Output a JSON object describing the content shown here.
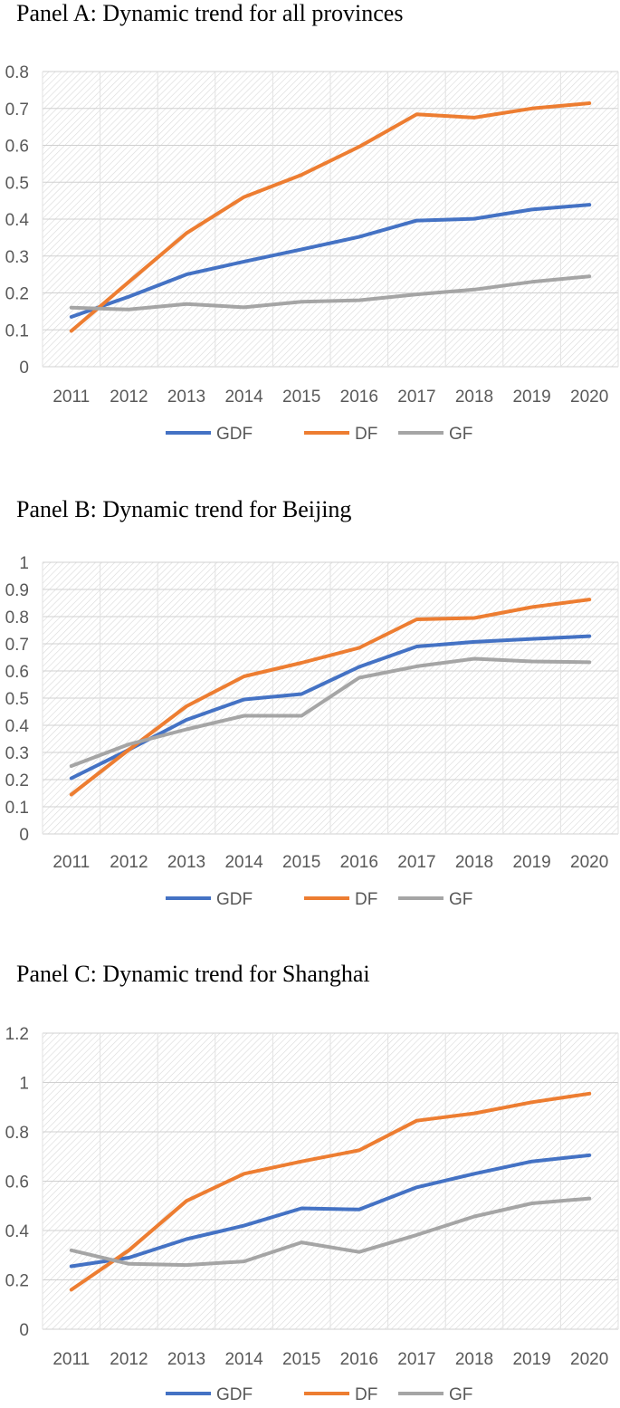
{
  "colors": {
    "GDF": "#4472C4",
    "DF": "#ED7D31",
    "GF": "#A5A5A5"
  },
  "chart_data": [
    {
      "type": "line",
      "title": "Panel A: Dynamic trend for all provinces",
      "categories": [
        "2011",
        "2012",
        "2013",
        "2014",
        "2015",
        "2016",
        "2017",
        "2018",
        "2019",
        "2020"
      ],
      "ylim": [
        0,
        0.8
      ],
      "yticks": [
        "0",
        "0.1",
        "0.2",
        "0.3",
        "0.4",
        "0.5",
        "0.6",
        "0.7",
        "0.8"
      ],
      "legend": [
        "GDF",
        "DF",
        "GF"
      ],
      "series": [
        {
          "name": "GDF",
          "values": [
            0.135,
            0.19,
            0.25,
            0.285,
            0.318,
            0.352,
            0.396,
            0.401,
            0.426,
            0.439
          ]
        },
        {
          "name": "DF",
          "values": [
            0.097,
            0.23,
            0.362,
            0.46,
            0.52,
            0.596,
            0.684,
            0.675,
            0.7,
            0.714
          ]
        },
        {
          "name": "GF",
          "values": [
            0.16,
            0.155,
            0.17,
            0.161,
            0.176,
            0.18,
            0.196,
            0.209,
            0.23,
            0.245
          ]
        }
      ]
    },
    {
      "type": "line",
      "title": "Panel B: Dynamic trend for Beijing",
      "categories": [
        "2011",
        "2012",
        "2013",
        "2014",
        "2015",
        "2016",
        "2017",
        "2018",
        "2019",
        "2020"
      ],
      "ylim": [
        0,
        1
      ],
      "yticks": [
        "0",
        "0.1",
        "0.2",
        "0.3",
        "0.4",
        "0.5",
        "0.6",
        "0.7",
        "0.8",
        "0.9",
        "1"
      ],
      "legend": [
        "GDF",
        "DF",
        "GF"
      ],
      "series": [
        {
          "name": "GDF",
          "values": [
            0.205,
            0.31,
            0.42,
            0.495,
            0.515,
            0.615,
            0.69,
            0.707,
            0.718,
            0.728
          ]
        },
        {
          "name": "DF",
          "values": [
            0.145,
            0.31,
            0.47,
            0.58,
            0.63,
            0.685,
            0.79,
            0.795,
            0.835,
            0.863
          ]
        },
        {
          "name": "GF",
          "values": [
            0.25,
            0.33,
            0.385,
            0.435,
            0.435,
            0.575,
            0.617,
            0.645,
            0.635,
            0.632
          ]
        }
      ]
    },
    {
      "type": "line",
      "title": "Panel C: Dynamic trend for Shanghai",
      "categories": [
        "2011",
        "2012",
        "2013",
        "2014",
        "2015",
        "2016",
        "2017",
        "2018",
        "2019",
        "2020"
      ],
      "ylim": [
        0,
        1.2
      ],
      "yticks": [
        "0",
        "0.2",
        "0.4",
        "0.6",
        "0.8",
        "1",
        "1.2"
      ],
      "legend": [
        "GDF",
        "DF",
        "GF"
      ],
      "series": [
        {
          "name": "GDF",
          "values": [
            0.255,
            0.29,
            0.365,
            0.42,
            0.49,
            0.485,
            0.575,
            0.63,
            0.68,
            0.705
          ]
        },
        {
          "name": "DF",
          "values": [
            0.16,
            0.32,
            0.52,
            0.63,
            0.68,
            0.725,
            0.845,
            0.875,
            0.92,
            0.955
          ]
        },
        {
          "name": "GF",
          "values": [
            0.32,
            0.265,
            0.26,
            0.275,
            0.352,
            0.313,
            0.382,
            0.457,
            0.51,
            0.53
          ]
        }
      ]
    }
  ]
}
